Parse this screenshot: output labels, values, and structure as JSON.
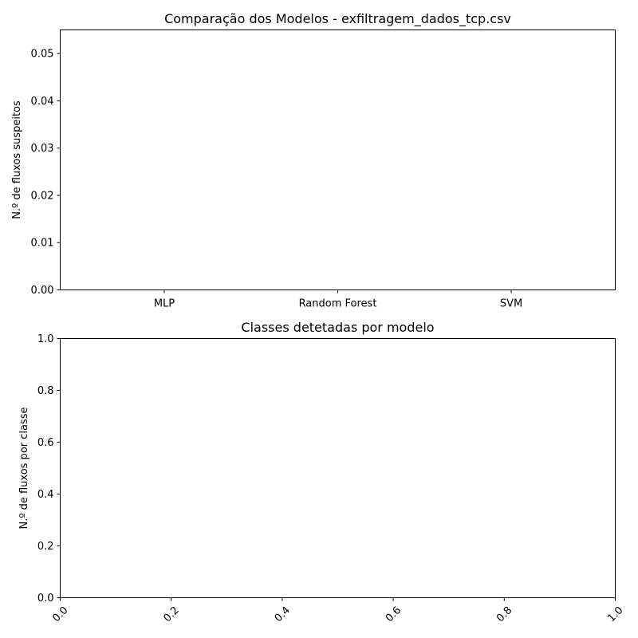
{
  "chart_data": [
    {
      "type": "bar",
      "title": "Comparação dos Modelos - exfiltragem_dados_tcp.csv",
      "xlabel": "",
      "ylabel": "N.º de fluxos suspeitos",
      "categories": [
        "MLP",
        "Random Forest",
        "SVM"
      ],
      "series": [
        {
          "values": [
            0,
            0,
            0
          ]
        }
      ],
      "ylim": [
        0,
        0.055
      ],
      "yticks": [
        "0.00",
        "0.01",
        "0.02",
        "0.03",
        "0.04",
        "0.05"
      ],
      "grid": false
    },
    {
      "type": "bar",
      "title": "Classes detetadas por modelo",
      "xlabel": "",
      "ylabel": "N.º de fluxos por classe",
      "categories": [],
      "series": [],
      "xlim": [
        0,
        1
      ],
      "ylim": [
        0,
        1
      ],
      "xticks": [
        "0.0",
        "0.2",
        "0.4",
        "0.6",
        "0.8",
        "1.0"
      ],
      "yticks": [
        "0.0",
        "0.2",
        "0.4",
        "0.6",
        "0.8",
        "1.0"
      ],
      "xtick_rotation": "45",
      "grid": false
    }
  ]
}
